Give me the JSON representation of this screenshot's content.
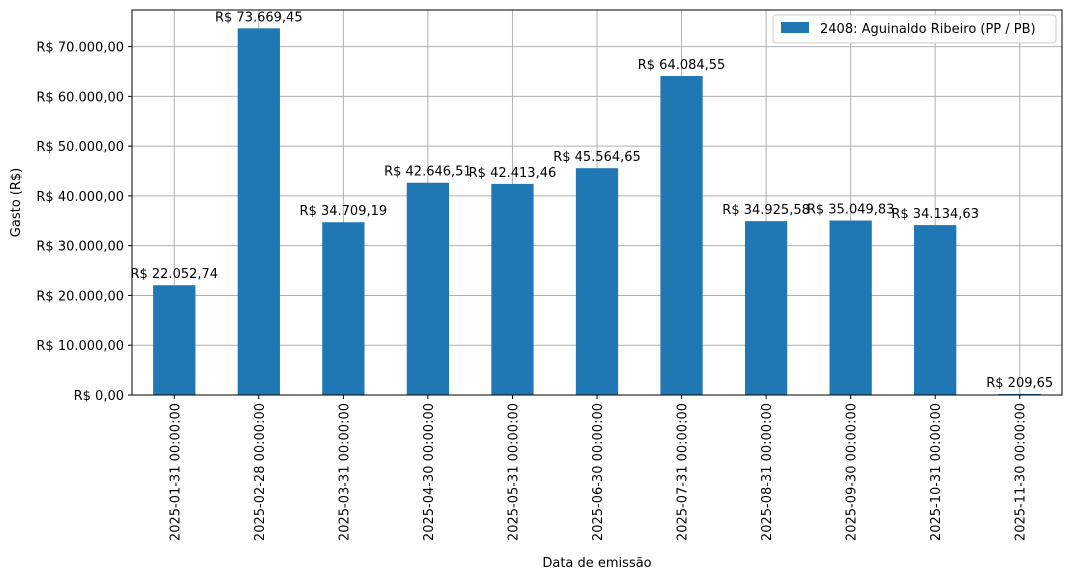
{
  "chart_data": {
    "type": "bar",
    "categories": [
      "2025-01-31 00:00:00",
      "2025-02-28 00:00:00",
      "2025-03-31 00:00:00",
      "2025-04-30 00:00:00",
      "2025-05-31 00:00:00",
      "2025-06-30 00:00:00",
      "2025-07-31 00:00:00",
      "2025-08-31 00:00:00",
      "2025-09-30 00:00:00",
      "2025-10-31 00:00:00",
      "2025-11-30 00:00:00"
    ],
    "series": [
      {
        "name": "2408: Aguinaldo Ribeiro (PP / PB)",
        "color": "#1f77b4",
        "values": [
          22052.74,
          73669.45,
          34709.19,
          42646.51,
          42413.46,
          45564.65,
          64084.55,
          34925.58,
          35049.83,
          34134.63,
          209.65
        ]
      }
    ],
    "data_labels": [
      "R$ 22.052,74",
      "R$ 73.669,45",
      "R$ 34.709,19",
      "R$ 42.646,51",
      "R$ 42.413,46",
      "R$ 45.564,65",
      "R$ 64.084,55",
      "R$ 34.925,58",
      "R$ 35.049,83",
      "R$ 34.134,63",
      "R$ 209,65"
    ],
    "y_ticks": [
      0,
      10000,
      20000,
      30000,
      40000,
      50000,
      60000,
      70000
    ],
    "y_tick_labels": [
      "R$ 0,00",
      "R$ 10.000,00",
      "R$ 20.000,00",
      "R$ 30.000,00",
      "R$ 40.000,00",
      "R$ 50.000,00",
      "R$ 60.000,00",
      "R$ 70.000,00"
    ],
    "xlabel": "Data de emissão",
    "ylabel": "Gasto (R$)",
    "ylim": [
      0,
      77350
    ],
    "grid": true,
    "legend_position": "top-right"
  }
}
